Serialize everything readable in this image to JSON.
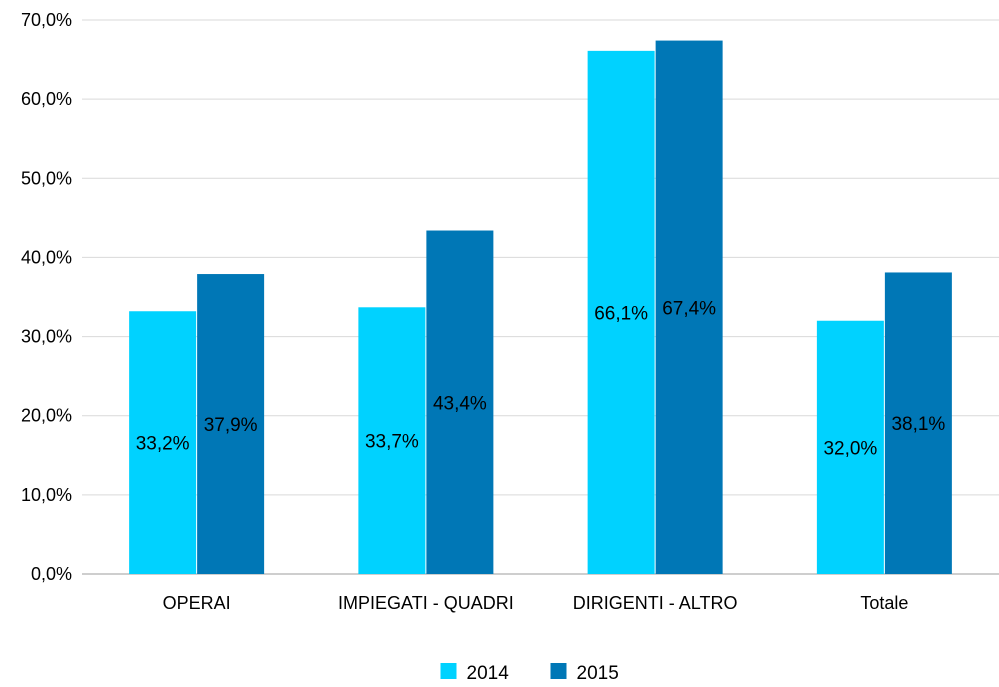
{
  "chart_data": {
    "type": "bar",
    "categories": [
      "OPERAI",
      "IMPIEGATI - QUADRI",
      "DIRIGENTI - ALTRO",
      "Totale"
    ],
    "series": [
      {
        "name": "2014",
        "values": [
          33.2,
          33.7,
          66.1,
          32.0
        ],
        "labels": [
          "33,2%",
          "33,7%",
          "66,1%",
          "32,0%"
        ],
        "color": "#00d2ff"
      },
      {
        "name": "2015",
        "values": [
          37.9,
          43.4,
          67.4,
          38.1
        ],
        "labels": [
          "37,9%",
          "43,4%",
          "67,4%",
          "38,1%"
        ],
        "color": "#0077b6"
      }
    ],
    "ylim": [
      0,
      70
    ],
    "yticks": [
      0,
      10,
      20,
      30,
      40,
      50,
      60,
      70
    ],
    "ytick_labels": [
      "0,0%",
      "10,0%",
      "20,0%",
      "30,0%",
      "40,0%",
      "50,0%",
      "60,0%",
      "70,0%"
    ],
    "grid": true,
    "legend_position": "bottom"
  }
}
